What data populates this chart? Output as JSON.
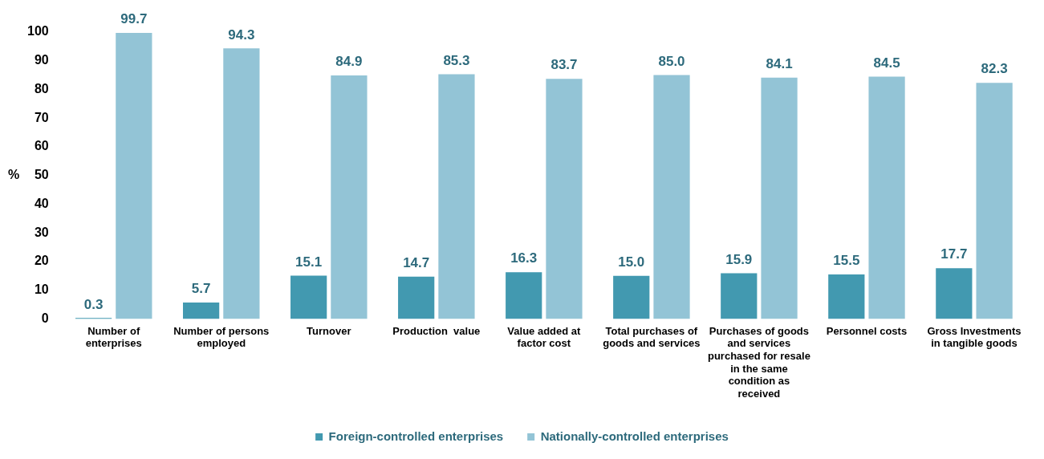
{
  "chart_data": {
    "type": "bar",
    "ylabel": "%",
    "categories": [
      "Number of enterprises",
      "Number of persons employed",
      "Turnover",
      "Production  value",
      "Value added at factor cost",
      "Total purchases of goods and services",
      "Purchases of goods and services purchased for resale in the same condition as received",
      "Personnel costs",
      "Gross Investments in tangible goods"
    ],
    "series": [
      {
        "name": "Foreign-controlled enterprises",
        "color": "#4299b0",
        "values": [
          0.3,
          5.7,
          15.1,
          14.7,
          16.3,
          15.0,
          15.9,
          15.5,
          17.7
        ],
        "value_labels": [
          "0.3",
          "5.7",
          "15.1",
          "14.7",
          "16.3",
          "15.0",
          "15.9",
          "15.5",
          "17.7"
        ]
      },
      {
        "name": "Nationally-controlled enterprises",
        "color": "#93c4d6",
        "values": [
          99.7,
          94.3,
          84.9,
          85.3,
          83.7,
          85.0,
          84.1,
          84.5,
          82.3
        ],
        "value_labels": [
          "99.7",
          "94.3",
          "84.9",
          "85.3",
          "83.7",
          "85.0",
          "84.1",
          "84.5",
          "82.3"
        ]
      }
    ],
    "ylim": [
      0,
      100
    ],
    "yticks": [
      0,
      10,
      20,
      30,
      40,
      50,
      60,
      70,
      80,
      90,
      100
    ],
    "grid": false,
    "legend": "bottom"
  }
}
